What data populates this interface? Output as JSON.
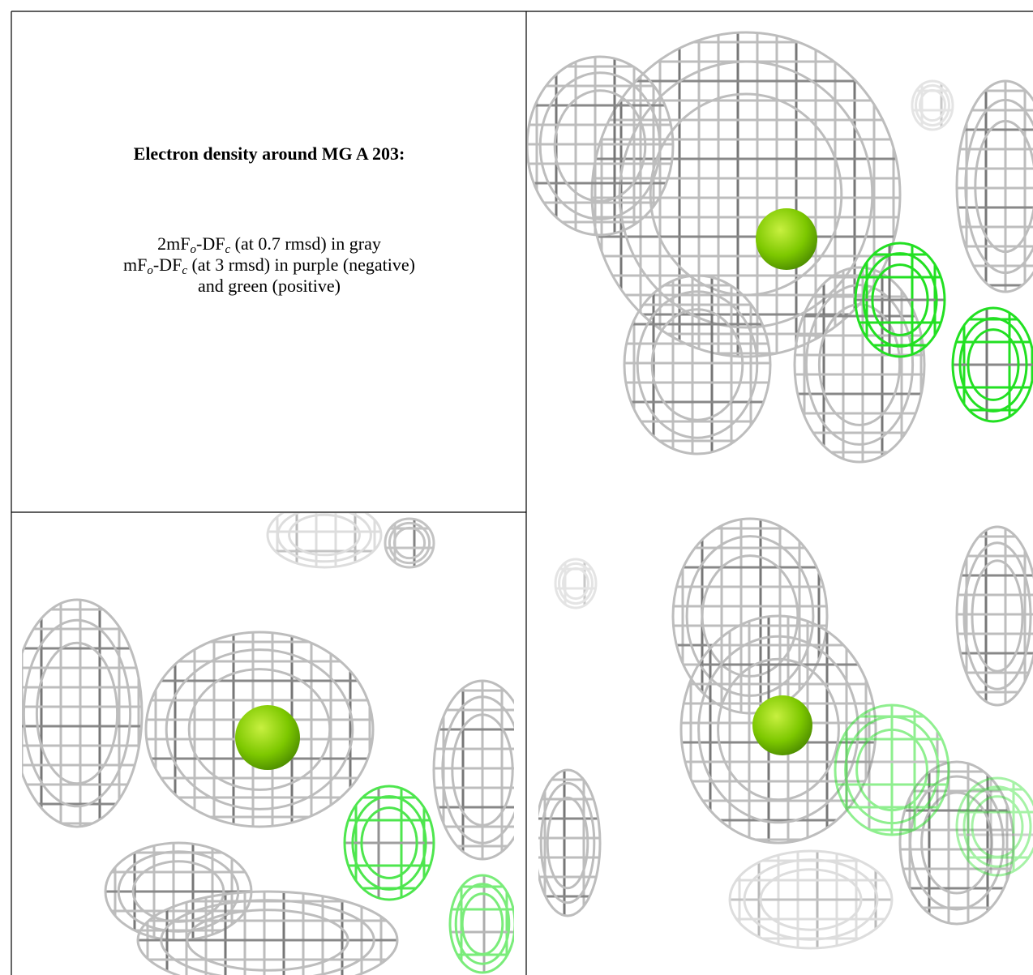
{
  "cells": {
    "description": {
      "title": "Electron density around MG A 203:",
      "lines": [
        [
          "2mF",
          "o",
          "-DF",
          "c",
          " (at 0.7 rmsd) in gray"
        ],
        [
          "mF",
          "o",
          "-DF",
          "c",
          " (at 3 rmsd) in purple (negative)"
        ],
        [
          "and green (positive)"
        ]
      ]
    }
  }
}
